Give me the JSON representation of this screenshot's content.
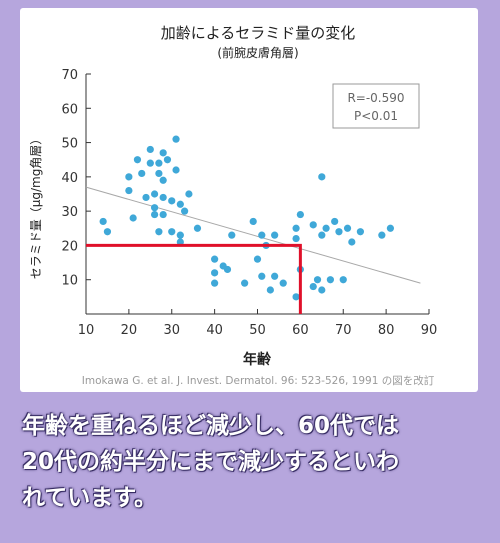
{
  "chart_data": {
    "type": "scatter",
    "title": "加齢によるセラミド量の変化",
    "subtitle": "(前腕皮膚角層)",
    "xlabel": "年齢",
    "ylabel": "セラミド量（μg/mg角層）",
    "xlim": [
      10,
      90
    ],
    "ylim": [
      0,
      70
    ],
    "xticks": [
      10,
      20,
      30,
      40,
      50,
      60,
      70,
      80,
      90
    ],
    "yticks": [
      10,
      20,
      30,
      40,
      50,
      60,
      70
    ],
    "grid": false,
    "stats_text": [
      "R=-0.590",
      "P<0.01"
    ],
    "points": [
      [
        14,
        27
      ],
      [
        15,
        24
      ],
      [
        20,
        40
      ],
      [
        20,
        36
      ],
      [
        21,
        28
      ],
      [
        22,
        45
      ],
      [
        23,
        41
      ],
      [
        24,
        34
      ],
      [
        25,
        48
      ],
      [
        25,
        44
      ],
      [
        26,
        31
      ],
      [
        26,
        29
      ],
      [
        26,
        35
      ],
      [
        27,
        44
      ],
      [
        27,
        41
      ],
      [
        27,
        24
      ],
      [
        28,
        39
      ],
      [
        28,
        47
      ],
      [
        28,
        34
      ],
      [
        28,
        29
      ],
      [
        29,
        45
      ],
      [
        30,
        33
      ],
      [
        30,
        24
      ],
      [
        31,
        42
      ],
      [
        31,
        51
      ],
      [
        32,
        32
      ],
      [
        32,
        23
      ],
      [
        32,
        21
      ],
      [
        33,
        30
      ],
      [
        34,
        35
      ],
      [
        36,
        25
      ],
      [
        40,
        16
      ],
      [
        40,
        12
      ],
      [
        40,
        9
      ],
      [
        42,
        14
      ],
      [
        43,
        13
      ],
      [
        44,
        23
      ],
      [
        47,
        9
      ],
      [
        49,
        27
      ],
      [
        50,
        16
      ],
      [
        51,
        23
      ],
      [
        51,
        11
      ],
      [
        52,
        20
      ],
      [
        53,
        7
      ],
      [
        54,
        23
      ],
      [
        54,
        11
      ],
      [
        56,
        9
      ],
      [
        59,
        25
      ],
      [
        59,
        22
      ],
      [
        59,
        5
      ],
      [
        60,
        29
      ],
      [
        60,
        13
      ],
      [
        63,
        26
      ],
      [
        63,
        8
      ],
      [
        64,
        10
      ],
      [
        65,
        7
      ],
      [
        65,
        40
      ],
      [
        65,
        23
      ],
      [
        66,
        25
      ],
      [
        67,
        10
      ],
      [
        68,
        27
      ],
      [
        69,
        24
      ],
      [
        70,
        10
      ],
      [
        71,
        25
      ],
      [
        72,
        21
      ],
      [
        74,
        24
      ],
      [
        79,
        23
      ],
      [
        81,
        25
      ]
    ],
    "trend_line": {
      "x": [
        10,
        88
      ],
      "y": [
        37,
        9
      ]
    },
    "highlight_line": {
      "points": [
        [
          10,
          20
        ],
        [
          60,
          20
        ],
        [
          60,
          0
        ]
      ]
    },
    "source_note": "Imokawa G. et al. J. Invest. Dermatol. 96: 523-526, 1991 の図を改訂"
  },
  "colors": {
    "background": "#b6a6dd",
    "point": "#3fa8d8",
    "highlight": "#e0102a",
    "trend": "#a8a8a8",
    "axis": "#333333"
  },
  "caption": {
    "line1": "年齢を重ねるほど減少し、60代では",
    "line2": "20代の約半分にまで減少するといわ",
    "line3": "れています。"
  }
}
